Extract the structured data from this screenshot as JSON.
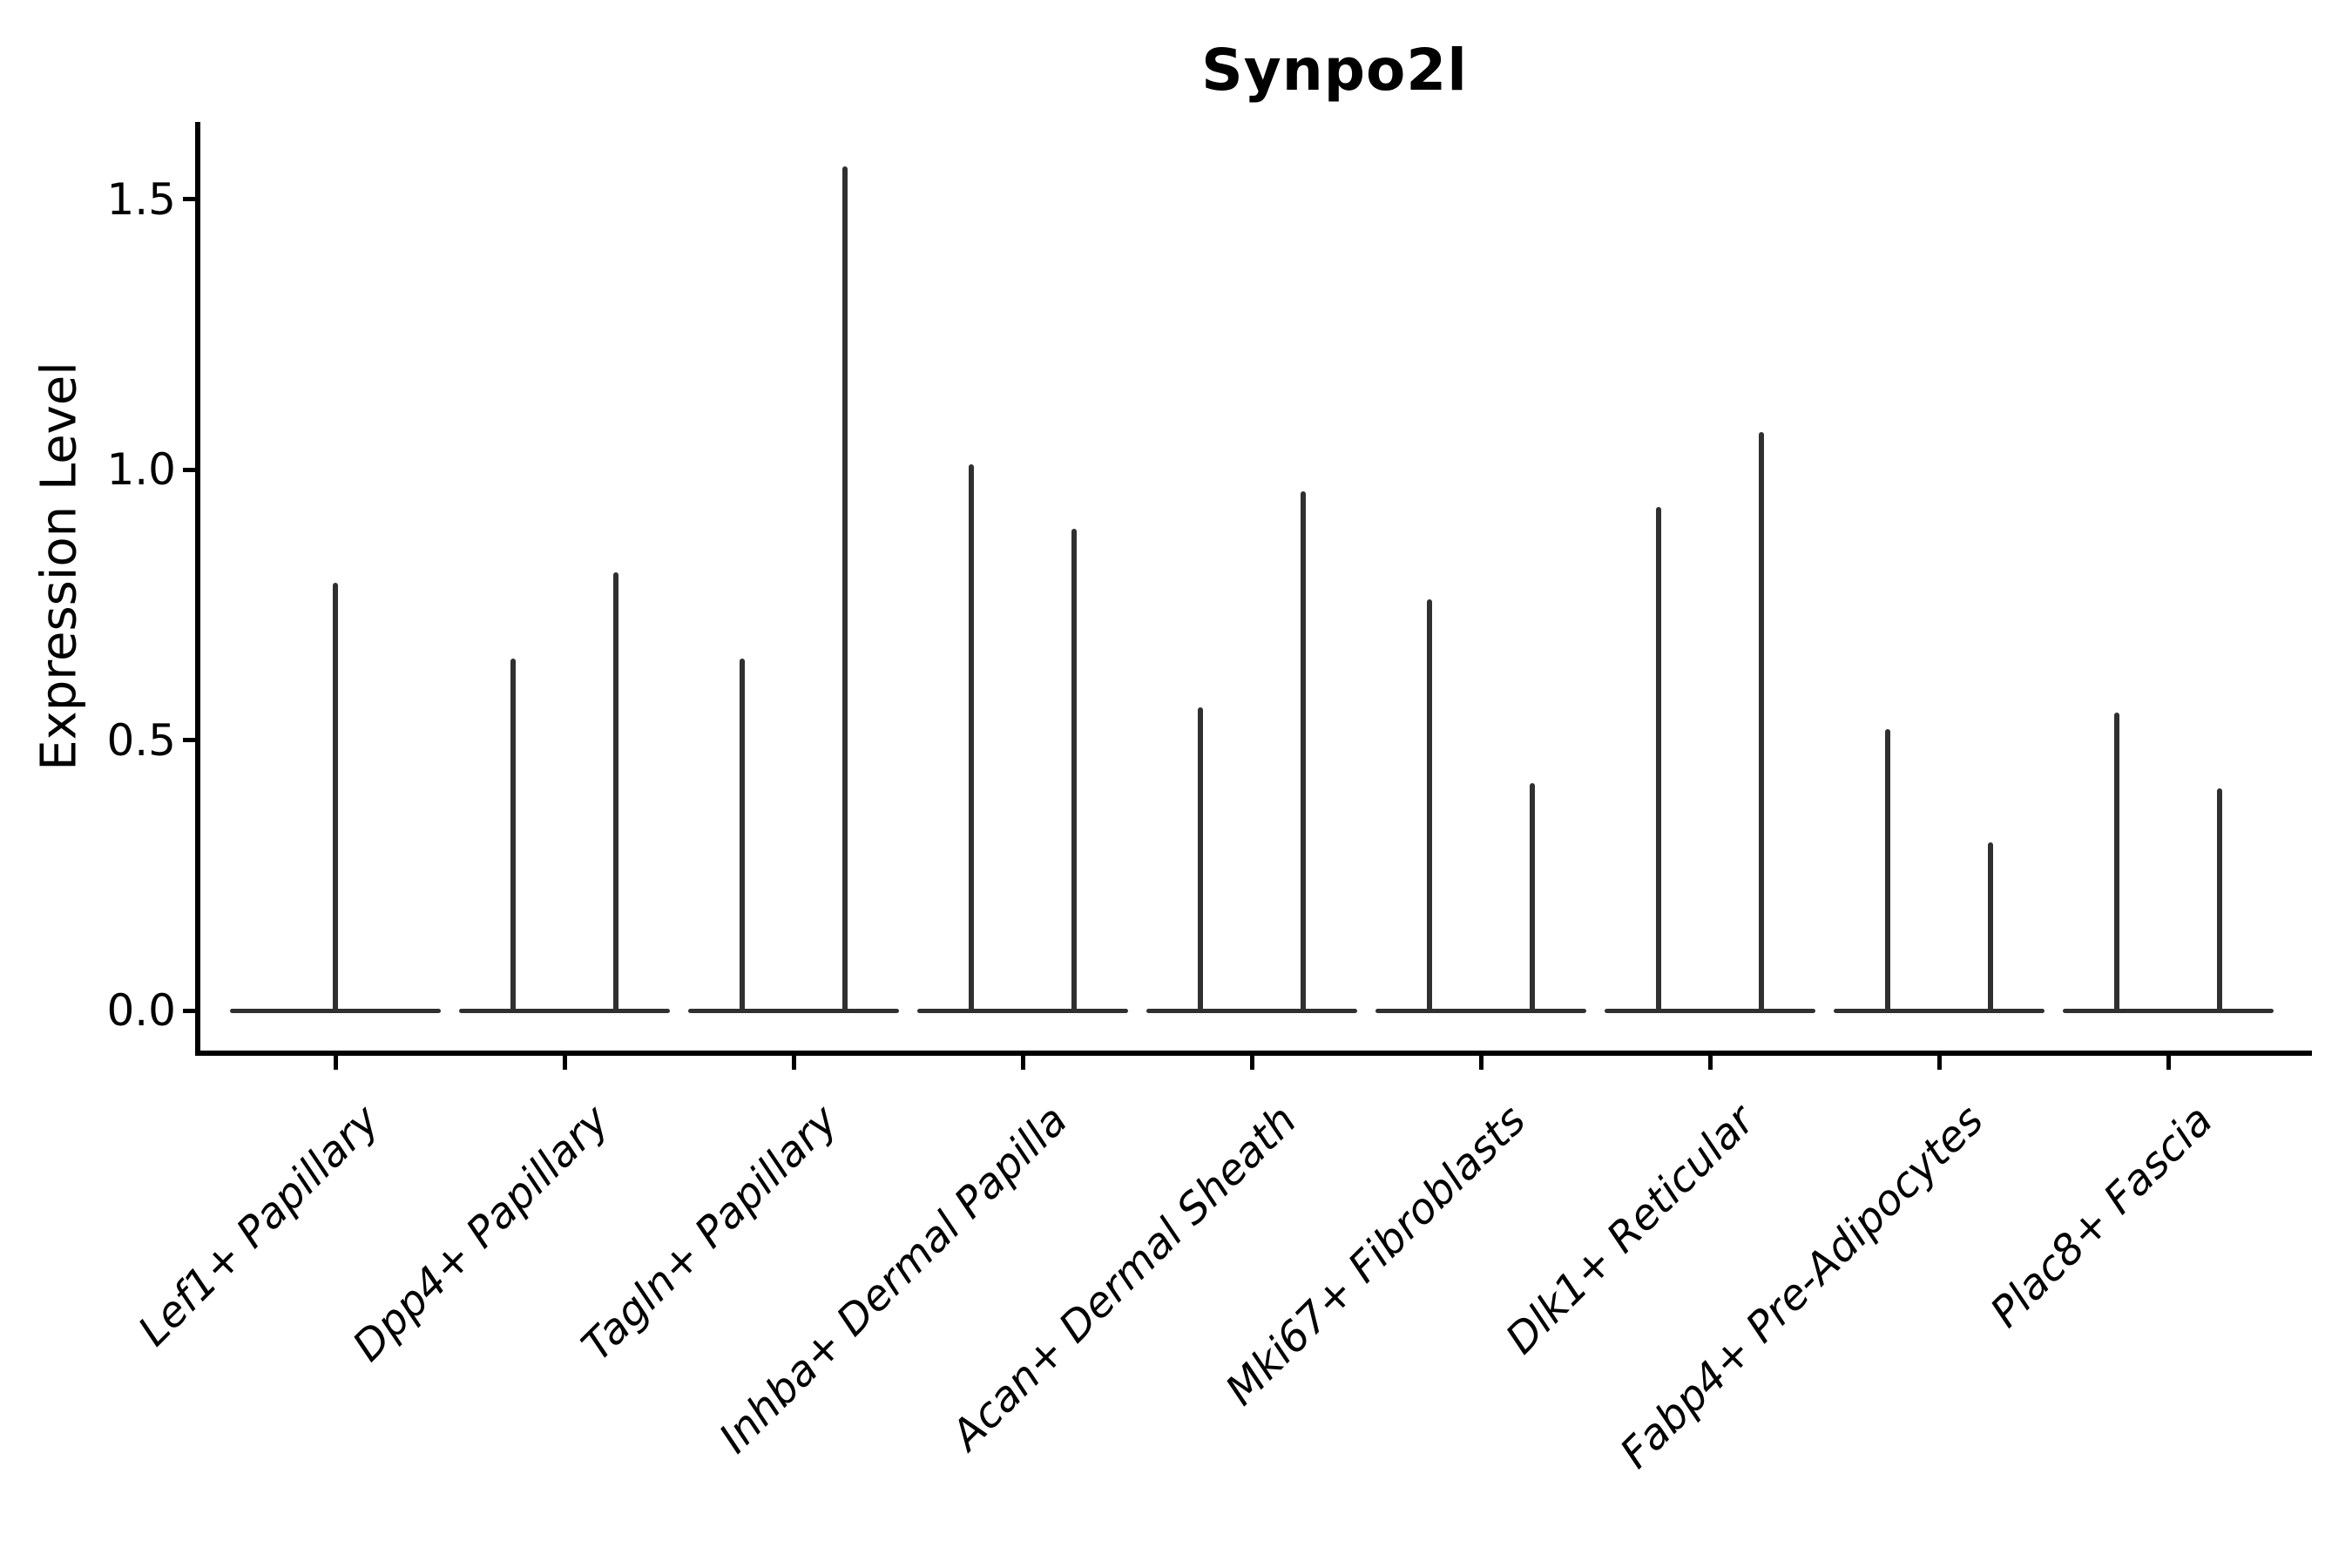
{
  "chart_data": {
    "type": "violin",
    "title": "Synpo2l",
    "ylabel": "Expression Level",
    "xlabel": "",
    "legend": "none",
    "grid": false,
    "ylim": [
      -0.07,
      1.64
    ],
    "yticks": [
      {
        "value": 0.0,
        "label": "0.0"
      },
      {
        "value": 0.5,
        "label": "0.5"
      },
      {
        "value": 1.0,
        "label": "1.0"
      },
      {
        "value": 1.5,
        "label": "1.5"
      }
    ],
    "categories": [
      "Lef1+ Papillary",
      "Dpp4+ Papillary",
      "Tagln+ Papillary",
      "Inhba+ Dermal Papilla",
      "Acan+ Dermal Sheath",
      "Mki67+ Fibroblasts",
      "Dlk1+ Reticular",
      "Fabp4+ Pre-Adipocytes",
      "Plac8+ Fascia"
    ],
    "violins": [
      {
        "category": "Lef1+ Papillary",
        "spikes": [
          {
            "position": "center",
            "peak": 0.79
          }
        ]
      },
      {
        "category": "Dpp4+ Papillary",
        "spikes": [
          {
            "position": "left",
            "peak": 0.65
          },
          {
            "position": "right",
            "peak": 0.81
          }
        ]
      },
      {
        "category": "Tagln+ Papillary",
        "spikes": [
          {
            "position": "left",
            "peak": 0.65
          },
          {
            "position": "right",
            "peak": 1.56
          }
        ]
      },
      {
        "category": "Inhba+ Dermal Papilla",
        "spikes": [
          {
            "position": "left",
            "peak": 1.01
          },
          {
            "position": "right",
            "peak": 0.89
          }
        ]
      },
      {
        "category": "Acan+ Dermal Sheath",
        "spikes": [
          {
            "position": "left",
            "peak": 0.56
          },
          {
            "position": "right",
            "peak": 0.96
          }
        ]
      },
      {
        "category": "Mki67+ Fibroblasts",
        "spikes": [
          {
            "position": "left",
            "peak": 0.76
          },
          {
            "position": "right",
            "peak": 0.42
          }
        ]
      },
      {
        "category": "Dlk1+ Reticular",
        "spikes": [
          {
            "position": "left",
            "peak": 0.93
          },
          {
            "position": "right",
            "peak": 1.07
          }
        ]
      },
      {
        "category": "Fabp4+ Pre-Adipocytes",
        "spikes": [
          {
            "position": "left",
            "peak": 0.52
          },
          {
            "position": "right",
            "peak": 0.31
          }
        ]
      },
      {
        "category": "Plac8+ Fascia",
        "spikes": [
          {
            "position": "left",
            "peak": 0.55
          },
          {
            "position": "right",
            "peak": 0.41
          }
        ]
      }
    ],
    "colors": {
      "violin_stroke": "#303030",
      "axis": "#000000",
      "text": "#000000",
      "background": "#ffffff"
    }
  }
}
